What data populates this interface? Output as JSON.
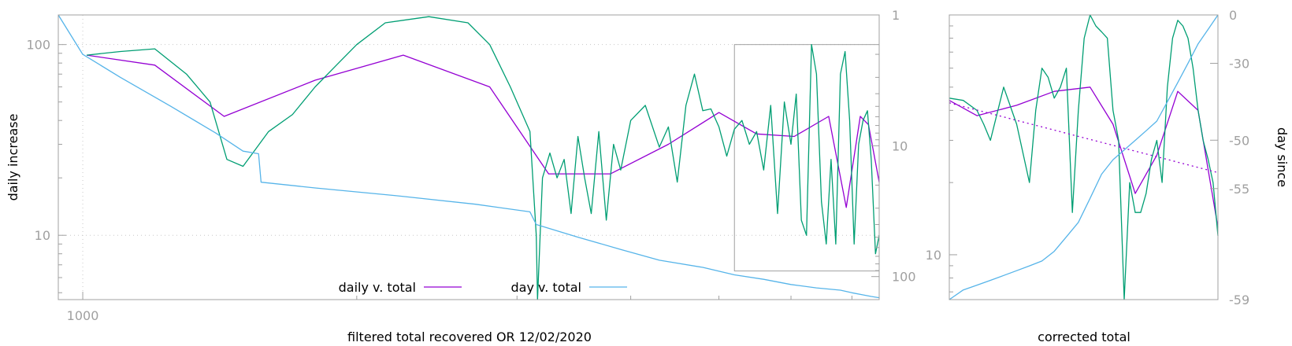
{
  "chart_data": [
    {
      "panel": "main",
      "type": "line",
      "xlabel": "filtered total recovered OR 12/02/2020",
      "ylabel": "daily increase",
      "y2label": "",
      "x_ticks": [
        {
          "label": "1000",
          "value": 1000
        }
      ],
      "y_ticks": [
        {
          "label": "100",
          "value": 100
        },
        {
          "label": "10",
          "value": 10
        }
      ],
      "y2_ticks": [
        {
          "label": "1",
          "value": 1
        },
        {
          "label": "10",
          "value": 10
        },
        {
          "label": "100",
          "value": 100
        }
      ],
      "xscale": "log",
      "yscale": "log",
      "y2scale": "log",
      "y2_reversed": true,
      "xlim": [
        940,
        7500
      ],
      "ylim": [
        4.6,
        143
      ],
      "y2lim": [
        1,
        150
      ],
      "grid": true,
      "legend_position": "bottom-center",
      "colors": {
        "green": "#009e73",
        "purple": "#9400d3",
        "blue": "#56b4e9",
        "inset": "#a0a0a0"
      },
      "inset_box": {
        "x": [
          5200,
          7500
        ],
        "y": [
          6.5,
          100
        ]
      },
      "series": [
        {
          "name": "daily v. total",
          "color": "#9400d3",
          "axis": "y",
          "x": [
            1010,
            1200,
            1430,
            1800,
            2250,
            2800,
            3250,
            3800,
            4400,
            5000,
            5500,
            6050,
            6600,
            6900,
            7150,
            7300,
            7500
          ],
          "y": [
            88,
            78,
            42,
            65,
            88,
            60,
            21,
            21,
            30,
            44,
            34,
            33,
            42,
            14,
            42,
            38,
            19
          ]
        },
        {
          "name": "",
          "color": "#009e73",
          "axis": "y",
          "x": [
            1010,
            1100,
            1200,
            1300,
            1380,
            1440,
            1500,
            1600,
            1700,
            1800,
            1900,
            2000,
            2150,
            2400,
            2650,
            2800,
            2950,
            3100,
            3150,
            3160,
            3200,
            3260,
            3320,
            3380,
            3440,
            3500,
            3560,
            3620,
            3690,
            3760,
            3830,
            3900,
            4000,
            4150,
            4300,
            4400,
            4500,
            4600,
            4700,
            4800,
            4900,
            5000,
            5100,
            5200,
            5300,
            5400,
            5500,
            5600,
            5700,
            5800,
            5900,
            6000,
            6080,
            6160,
            6240,
            6320,
            6400,
            6480,
            6560,
            6640,
            6720,
            6800,
            6880,
            6960,
            7040,
            7120,
            7200,
            7280,
            7350,
            7430,
            7500
          ],
          "y": [
            88,
            92,
            95,
            70,
            50,
            25,
            23,
            35,
            43,
            60,
            78,
            100,
            130,
            140,
            130,
            100,
            60,
            35,
            10,
            4.6,
            20,
            27,
            20,
            25,
            13,
            33,
            20,
            13,
            35,
            12,
            30,
            22,
            40,
            48,
            29,
            37,
            19,
            48,
            70,
            45,
            46,
            37,
            26,
            36,
            40,
            30,
            35,
            22,
            48,
            13,
            50,
            30,
            55,
            12,
            10,
            100,
            70,
            15,
            9,
            25,
            9,
            70,
            92,
            40,
            9,
            30,
            40,
            45,
            25,
            8,
            10
          ]
        },
        {
          "name": "day v. total",
          "color": "#56b4e9",
          "axis": "y2",
          "x": [
            940,
            1000,
            1100,
            1250,
            1400,
            1500,
            1560,
            1570,
            1800,
            2200,
            2700,
            3100,
            3150,
            3500,
            3900,
            4300,
            4800,
            5200,
            5600,
            6000,
            6400,
            6800,
            7000,
            7200,
            7350,
            7500
          ],
          "y": [
            1,
            2,
            3,
            5,
            8,
            11,
            11.5,
            19,
            21,
            24,
            28,
            32,
            40,
            50,
            62,
            75,
            85,
            97,
            105,
            115,
            122,
            127,
            133,
            138,
            142,
            145
          ]
        }
      ]
    },
    {
      "panel": "inset",
      "type": "line",
      "xlabel": "corrected total",
      "ylabel": "",
      "y2label": "day since",
      "y_ticks": [
        {
          "label": "10",
          "value": 10
        }
      ],
      "y2_ticks": [
        {
          "label": "0",
          "value": 0
        },
        {
          "label": "-30",
          "value": -30
        },
        {
          "label": "-50",
          "value": -50
        },
        {
          "label": "-55",
          "value": -55
        },
        {
          "label": "-59",
          "value": -59
        }
      ],
      "xscale": "log",
      "yscale": "log",
      "xlim": [
        5200,
        7500
      ],
      "ylim": [
        6.5,
        100
      ],
      "y2lim": [
        -59,
        0
      ],
      "y2_label_positions": {
        "0": 0,
        "-30": 0.17,
        "-50": 0.44,
        "-55": 0.61,
        "-59": 1.0
      },
      "grid": false,
      "series": [
        {
          "name": "daily v. total",
          "color": "#9400d3",
          "axis": "y",
          "x": [
            5200,
            5400,
            5700,
            6000,
            6300,
            6500,
            6700,
            6900,
            7100,
            7300,
            7500
          ],
          "y": [
            44,
            38,
            42,
            48,
            50,
            35,
            18,
            26,
            48,
            40,
            13
          ]
        },
        {
          "name": "",
          "color": "#009e73",
          "axis": "y",
          "x": [
            5200,
            5300,
            5400,
            5450,
            5500,
            5600,
            5700,
            5800,
            5850,
            5900,
            5950,
            6000,
            6050,
            6100,
            6150,
            6200,
            6250,
            6300,
            6350,
            6400,
            6450,
            6500,
            6550,
            6600,
            6650,
            6700,
            6750,
            6800,
            6850,
            6900,
            6950,
            7000,
            7050,
            7100,
            7150,
            7200,
            7250,
            7300,
            7350,
            7400,
            7450,
            7500
          ],
          "y": [
            45,
            44,
            40,
            35,
            30,
            50,
            35,
            20,
            40,
            60,
            55,
            45,
            50,
            60,
            15,
            40,
            80,
            100,
            90,
            85,
            80,
            40,
            30,
            6.5,
            20,
            15,
            15,
            18,
            25,
            30,
            20,
            50,
            80,
            95,
            90,
            80,
            60,
            40,
            30,
            25,
            20,
            12
          ]
        },
        {
          "name": "day v. total",
          "color": "#56b4e9",
          "axis": "y2",
          "x": [
            5200,
            5300,
            5400,
            5500,
            5600,
            5700,
            5800,
            5900,
            6000,
            6100,
            6200,
            6300,
            6400,
            6500,
            6600,
            6700,
            6800,
            6900,
            7000,
            7100,
            7200,
            7300,
            7400,
            7500
          ],
          "y": [
            -59,
            -57,
            -56,
            -55,
            -54,
            -53,
            -52,
            -51,
            -49,
            -46,
            -43,
            -38,
            -33,
            -30,
            -28,
            -26,
            -24,
            -22,
            -18,
            -14,
            -10,
            -6,
            -3,
            0
          ]
        },
        {
          "name": "",
          "color": "#9400d3",
          "style": "dotted",
          "axis": "y",
          "x": [
            5200,
            7500
          ],
          "y": [
            43,
            22
          ]
        }
      ]
    }
  ],
  "legend": [
    {
      "label": "daily v. total",
      "color": "#9400d3"
    },
    {
      "label": "day v. total",
      "color": "#56b4e9"
    }
  ]
}
